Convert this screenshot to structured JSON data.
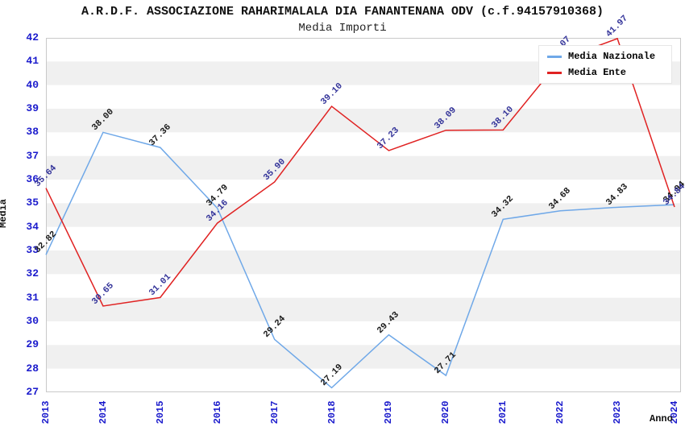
{
  "chart_data": {
    "type": "line",
    "title": "A.R.D.F. ASSOCIAZIONE RAHARIMALALA DIA FANANTENANA ODV (c.f.94157910368)",
    "subtitle": "Media Importi",
    "xlabel": "Anno",
    "ylabel": "Media",
    "x": [
      2013,
      2014,
      2015,
      2016,
      2017,
      2018,
      2019,
      2020,
      2021,
      2022,
      2023,
      2024
    ],
    "ylim": [
      27,
      42
    ],
    "ytick_step": 1,
    "grid": "alternating-horizontal-bands",
    "legend_position": "top-right",
    "series": [
      {
        "name": "Media Nazionale",
        "color": "#6fa8e8",
        "label_color": "#1a1a1a",
        "values": [
          32.82,
          38.0,
          37.36,
          34.79,
          29.24,
          27.19,
          29.43,
          27.71,
          34.32,
          34.68,
          34.83,
          34.94
        ]
      },
      {
        "name": "Media Ente",
        "color": "#e02222",
        "label_color": "#333399",
        "values": [
          35.64,
          30.65,
          31.01,
          34.16,
          35.9,
          39.1,
          37.23,
          38.09,
          38.1,
          41.07,
          41.97,
          34.84
        ]
      }
    ],
    "colors": {
      "axis_tick": "#1a1acc",
      "band": "#f0f0f0",
      "plot_border": "#c9c9c9",
      "title_text": "#111111"
    },
    "notes": "Ente 2022 data label partially hidden behind legend box"
  }
}
